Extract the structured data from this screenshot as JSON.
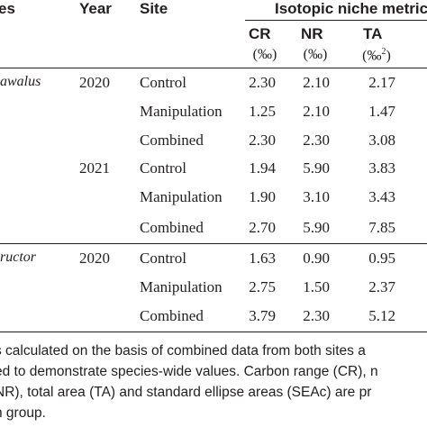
{
  "header": {
    "species_col": "es",
    "year": "Year",
    "site": "Site",
    "group": "Isotopic niche metric"
  },
  "metrics": [
    {
      "abbr": "CR",
      "unit": "(‰)"
    },
    {
      "abbr": "NR",
      "unit": "(‰)"
    },
    {
      "abbr": "TA",
      "unit": "(‰",
      "unit_sup": "2",
      "unit_end": ")"
    }
  ],
  "groups": [
    {
      "species": "awalus",
      "rows": [
        {
          "year": "2020",
          "site": "Control",
          "cr": "2.30",
          "nr": "2.10",
          "ta": "2.17"
        },
        {
          "year": "",
          "site": "Manipulation",
          "cr": "1.25",
          "nr": "2.10",
          "ta": "1.47"
        },
        {
          "year": "",
          "site": "Combined",
          "cr": "2.30",
          "nr": "2.30",
          "ta": "3.08"
        },
        {
          "year": "2021",
          "site": "Control",
          "cr": "1.94",
          "nr": "5.90",
          "ta": "3.83"
        },
        {
          "year": "",
          "site": "Manipulation",
          "cr": "1.90",
          "nr": "3.10",
          "ta": "3.43"
        },
        {
          "year": "",
          "site": "Combined",
          "cr": "2.70",
          "nr": "5.90",
          "ta": "7.85"
        }
      ]
    },
    {
      "species": "ructor",
      "rows": [
        {
          "year": "2020",
          "site": "Control",
          "cr": "1.63",
          "nr": "0.90",
          "ta": "0.95"
        },
        {
          "year": "",
          "site": "Manipulation",
          "cr": "2.75",
          "nr": "1.50",
          "ta": "2.37"
        },
        {
          "year": "",
          "site": "Combined",
          "cr": "3.79",
          "nr": "2.30",
          "ta": "5.12"
        }
      ]
    }
  ],
  "footnote": [
    "s calculated on the basis of combined data from both sites a",
    "ed to demonstrate species-wide values. Carbon range (CR), n",
    "NR), total area (TA) and standard ellipse areas (SEAc) are pr",
    "h group."
  ]
}
